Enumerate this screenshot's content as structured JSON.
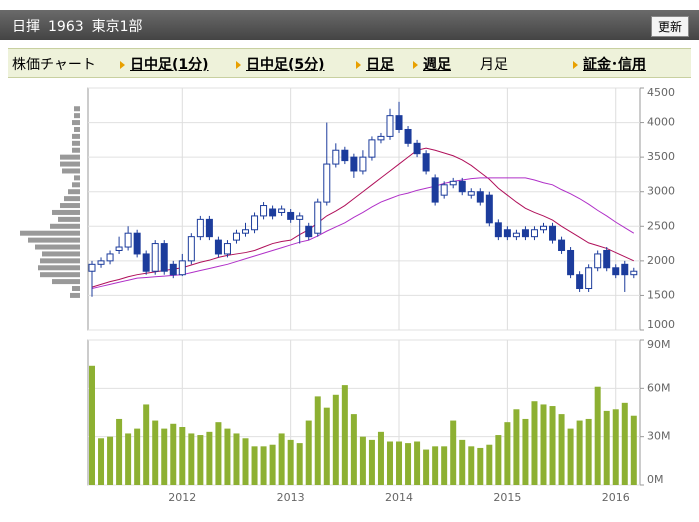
{
  "header": {
    "name": "日揮",
    "code": "1963",
    "market": "東京1部",
    "button": "更新"
  },
  "tabs": [
    {
      "label": "株価チャート",
      "link": false
    },
    {
      "label": "日中足(1分)",
      "link": true
    },
    {
      "label": "日中足(5分)",
      "link": true
    },
    {
      "label": "日足",
      "link": true
    },
    {
      "label": "週足",
      "link": true
    },
    {
      "label": "月足",
      "link": false
    },
    {
      "label": "証金･信用",
      "link": true
    }
  ],
  "chart_data": [
    {
      "type": "candlestick",
      "categories": [
        null,
        null,
        null,
        null,
        null,
        null,
        null,
        null,
        null,
        null,
        "2012",
        null,
        null,
        null,
        null,
        null,
        null,
        null,
        null,
        null,
        null,
        null,
        "2013",
        null,
        null,
        null,
        null,
        null,
        null,
        null,
        null,
        null,
        null,
        null,
        "2014",
        null,
        null,
        null,
        null,
        null,
        null,
        null,
        null,
        null,
        null,
        null,
        "2015",
        null,
        null,
        null,
        null,
        null,
        null,
        null,
        null,
        null,
        null,
        null,
        "2016",
        null,
        null
      ],
      "open": [
        1850,
        1950,
        2000,
        2150,
        2200,
        2400,
        2100,
        1850,
        2250,
        1950,
        1800,
        2000,
        2350,
        2600,
        2300,
        2100,
        2300,
        2400,
        2450,
        2650,
        2750,
        2700,
        2700,
        2600,
        2500,
        2400,
        2850,
        3400,
        3600,
        3500,
        3300,
        3500,
        3750,
        3800,
        4100,
        3900,
        3700,
        3550,
        3200,
        2950,
        3100,
        3150,
        2950,
        3000,
        2950,
        2550,
        2450,
        2350,
        2450,
        2350,
        2450,
        2500,
        2300,
        2150,
        1800,
        1600,
        1900,
        2150,
        1900,
        1950,
        1800
      ],
      "high": [
        2000,
        2050,
        2150,
        2350,
        2500,
        2450,
        2150,
        2300,
        2300,
        2000,
        2100,
        2400,
        2650,
        2650,
        2350,
        2300,
        2450,
        2550,
        2700,
        2850,
        2800,
        2800,
        2750,
        2700,
        2550,
        2900,
        4000,
        3700,
        3650,
        3550,
        3600,
        3800,
        3850,
        4200,
        4300,
        3950,
        3750,
        3600,
        3250,
        3150,
        3200,
        3200,
        3050,
        3050,
        3000,
        2600,
        2500,
        2450,
        2500,
        2500,
        2550,
        2550,
        2350,
        2200,
        1850,
        1950,
        2150,
        2200,
        1950,
        2000,
        1900
      ],
      "low": [
        1480,
        1900,
        1950,
        2100,
        2150,
        2050,
        1800,
        1800,
        1800,
        1750,
        1780,
        1950,
        2300,
        2300,
        2050,
        2050,
        2250,
        2350,
        2400,
        2600,
        2600,
        2650,
        2550,
        2250,
        2300,
        2350,
        2800,
        3350,
        3400,
        3200,
        3250,
        3450,
        3700,
        3750,
        3850,
        3650,
        3500,
        3250,
        2800,
        2900,
        3050,
        2950,
        2900,
        2800,
        2500,
        2300,
        2300,
        2300,
        2300,
        2300,
        2400,
        2250,
        2100,
        1750,
        1550,
        1550,
        1850,
        1850,
        1750,
        1550,
        1750
      ],
      "close": [
        1950,
        2000,
        2100,
        2200,
        2400,
        2100,
        1850,
        2250,
        1850,
        1800,
        2000,
        2350,
        2600,
        2350,
        2100,
        2250,
        2400,
        2450,
        2650,
        2800,
        2650,
        2750,
        2600,
        2650,
        2350,
        2850,
        3400,
        3600,
        3450,
        3300,
        3500,
        3750,
        3800,
        4100,
        3900,
        3700,
        3550,
        3300,
        2850,
        3100,
        3150,
        3000,
        3000,
        2850,
        2550,
        2350,
        2350,
        2400,
        2350,
        2450,
        2500,
        2300,
        2150,
        1800,
        1600,
        1900,
        2100,
        1900,
        1800,
        1800,
        1850
      ],
      "up_color": "#ffffff",
      "down_color": "#1c3c9c",
      "edge_color": "#1c3c9c",
      "series": [
        {
          "color": "#b0105a",
          "values": [
            1620,
            1660,
            1700,
            1730,
            1770,
            1800,
            1820,
            1840,
            1860,
            1880,
            1900,
            1940,
            1980,
            2010,
            2050,
            2080,
            2100,
            2120,
            2150,
            2200,
            2250,
            2280,
            2300,
            2380,
            2450,
            2550,
            2650,
            2720,
            2800,
            2900,
            3000,
            3100,
            3200,
            3300,
            3400,
            3500,
            3600,
            3630,
            3600,
            3560,
            3520,
            3460,
            3380,
            3280,
            3180,
            3050,
            2950,
            2850,
            2760,
            2700,
            2650,
            2590,
            2500,
            2420,
            2340,
            2260,
            2220,
            2180,
            2120,
            2060,
            2000
          ]
        },
        {
          "color": "#b030c8",
          "values": [
            1600,
            1630,
            1660,
            1690,
            1720,
            1750,
            1760,
            1770,
            1780,
            1790,
            1800,
            1830,
            1860,
            1890,
            1920,
            1950,
            1990,
            2030,
            2070,
            2110,
            2150,
            2190,
            2230,
            2270,
            2300,
            2360,
            2430,
            2490,
            2550,
            2630,
            2700,
            2780,
            2850,
            2900,
            2950,
            2980,
            3020,
            3050,
            3080,
            3120,
            3150,
            3170,
            3190,
            3200,
            3200,
            3200,
            3200,
            3200,
            3200,
            3170,
            3130,
            3100,
            3030,
            2970,
            2900,
            2820,
            2730,
            2650,
            2560,
            2480,
            2400
          ]
        }
      ],
      "ylim": [
        1000,
        4500
      ],
      "yticks": [
        1000,
        1500,
        2000,
        2500,
        3000,
        3500,
        4000,
        4500
      ],
      "grid": true,
      "price_profile": {
        "color": "#999999",
        "levels": [
          1500,
          1600,
          1700,
          1800,
          1900,
          2000,
          2100,
          2200,
          2300,
          2400,
          2500,
          2600,
          2700,
          2800,
          2900,
          3000,
          3100,
          3200,
          3300,
          3400,
          3500,
          3600,
          3700,
          3800,
          3900,
          4000,
          4100,
          4200
        ],
        "values": [
          10,
          8,
          28,
          40,
          42,
          40,
          38,
          45,
          52,
          60,
          30,
          22,
          28,
          20,
          16,
          12,
          8,
          6,
          18,
          20,
          20,
          8,
          8,
          8,
          6,
          8,
          6,
          6
        ]
      }
    },
    {
      "type": "bar",
      "color": "#8db032",
      "values": [
        74,
        29,
        30,
        41,
        32,
        35,
        50,
        40,
        35,
        38,
        36,
        32,
        31,
        33,
        39,
        35,
        32,
        29,
        24,
        24,
        25,
        32,
        28,
        26,
        40,
        55,
        48,
        56,
        62,
        44,
        30,
        28,
        33,
        27,
        27,
        26,
        27,
        22,
        24,
        24,
        40,
        28,
        24,
        23,
        25,
        31,
        39,
        47,
        41,
        52,
        50,
        49,
        44,
        35,
        40,
        41,
        61,
        46,
        47,
        51,
        43
      ],
      "ylim": [
        0,
        90
      ],
      "yticks": [
        {
          "value": 0,
          "label": "0M"
        },
        {
          "value": 30,
          "label": "30M"
        },
        {
          "value": 60,
          "label": "60M"
        },
        {
          "value": 90,
          "label": "90M"
        }
      ],
      "grid": true
    }
  ]
}
